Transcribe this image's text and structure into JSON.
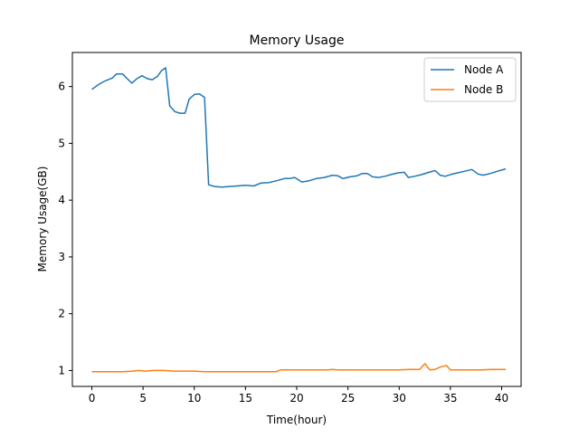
{
  "chart_data": {
    "type": "line",
    "title": "Memory Usage",
    "xlabel": "Time(hour)",
    "ylabel": "Memory Usage(GB)",
    "xlim": [
      -1.9,
      41.9
    ],
    "ylim": [
      0.72,
      6.6
    ],
    "xticks": [
      0,
      5,
      10,
      15,
      20,
      25,
      30,
      35,
      40
    ],
    "yticks": [
      1,
      2,
      3,
      4,
      5,
      6
    ],
    "grid": false,
    "legend_position": "top-right",
    "series": [
      {
        "name": "Node A",
        "color": "#1f77b4",
        "points": [
          [
            0,
            5.95
          ],
          [
            0.7,
            6.04
          ],
          [
            1.3,
            6.1
          ],
          [
            2.0,
            6.15
          ],
          [
            2.4,
            6.22
          ],
          [
            3.0,
            6.22
          ],
          [
            3.5,
            6.13
          ],
          [
            3.9,
            6.06
          ],
          [
            4.4,
            6.14
          ],
          [
            4.9,
            6.19
          ],
          [
            5.4,
            6.14
          ],
          [
            5.9,
            6.12
          ],
          [
            6.4,
            6.18
          ],
          [
            6.8,
            6.28
          ],
          [
            7.2,
            6.33
          ],
          [
            7.6,
            5.66
          ],
          [
            8.1,
            5.56
          ],
          [
            8.6,
            5.53
          ],
          [
            9.1,
            5.53
          ],
          [
            9.5,
            5.78
          ],
          [
            10.0,
            5.86
          ],
          [
            10.5,
            5.87
          ],
          [
            11.0,
            5.81
          ],
          [
            11.4,
            4.27
          ],
          [
            12.0,
            4.24
          ],
          [
            12.7,
            4.23
          ],
          [
            13.4,
            4.24
          ],
          [
            14.2,
            4.25
          ],
          [
            15.0,
            4.26
          ],
          [
            15.8,
            4.25
          ],
          [
            16.5,
            4.3
          ],
          [
            17.3,
            4.31
          ],
          [
            18.0,
            4.34
          ],
          [
            18.8,
            4.38
          ],
          [
            19.3,
            4.38
          ],
          [
            19.8,
            4.4
          ],
          [
            20.5,
            4.32
          ],
          [
            21.2,
            4.34
          ],
          [
            21.9,
            4.38
          ],
          [
            22.7,
            4.4
          ],
          [
            23.5,
            4.44
          ],
          [
            24.0,
            4.43
          ],
          [
            24.5,
            4.38
          ],
          [
            25.2,
            4.41
          ],
          [
            25.9,
            4.43
          ],
          [
            26.4,
            4.47
          ],
          [
            26.9,
            4.47
          ],
          [
            27.4,
            4.41
          ],
          [
            28.0,
            4.4
          ],
          [
            28.6,
            4.42
          ],
          [
            29.2,
            4.45
          ],
          [
            29.9,
            4.48
          ],
          [
            30.5,
            4.49
          ],
          [
            30.9,
            4.4
          ],
          [
            31.5,
            4.42
          ],
          [
            32.2,
            4.45
          ],
          [
            32.9,
            4.49
          ],
          [
            33.5,
            4.52
          ],
          [
            34.0,
            4.44
          ],
          [
            34.5,
            4.42
          ],
          [
            35.0,
            4.45
          ],
          [
            35.7,
            4.48
          ],
          [
            36.4,
            4.51
          ],
          [
            37.1,
            4.54
          ],
          [
            37.7,
            4.46
          ],
          [
            38.2,
            4.44
          ],
          [
            38.9,
            4.47
          ],
          [
            39.6,
            4.51
          ],
          [
            40.4,
            4.55
          ]
        ]
      },
      {
        "name": "Node B",
        "color": "#ff7f0e",
        "points": [
          [
            0,
            0.98
          ],
          [
            1.5,
            0.98
          ],
          [
            3.0,
            0.98
          ],
          [
            4.0,
            0.99
          ],
          [
            4.5,
            1.0
          ],
          [
            5.2,
            0.99
          ],
          [
            6.0,
            1.0
          ],
          [
            7.0,
            1.0
          ],
          [
            8.0,
            0.99
          ],
          [
            9.0,
            0.99
          ],
          [
            10.0,
            0.99
          ],
          [
            11.0,
            0.98
          ],
          [
            12.5,
            0.98
          ],
          [
            14.0,
            0.98
          ],
          [
            15.5,
            0.98
          ],
          [
            17.0,
            0.98
          ],
          [
            18.0,
            0.98
          ],
          [
            18.4,
            1.01
          ],
          [
            20.0,
            1.01
          ],
          [
            22.0,
            1.01
          ],
          [
            23.0,
            1.01
          ],
          [
            23.5,
            1.02
          ],
          [
            24.0,
            1.01
          ],
          [
            26.0,
            1.01
          ],
          [
            28.0,
            1.01
          ],
          [
            30.0,
            1.01
          ],
          [
            31.0,
            1.02
          ],
          [
            32.0,
            1.02
          ],
          [
            32.5,
            1.12
          ],
          [
            33.0,
            1.01
          ],
          [
            33.5,
            1.02
          ],
          [
            34.0,
            1.06
          ],
          [
            34.6,
            1.09
          ],
          [
            35.0,
            1.01
          ],
          [
            36.0,
            1.01
          ],
          [
            37.0,
            1.01
          ],
          [
            38.0,
            1.01
          ],
          [
            39.0,
            1.02
          ],
          [
            40.4,
            1.02
          ]
        ]
      }
    ]
  }
}
